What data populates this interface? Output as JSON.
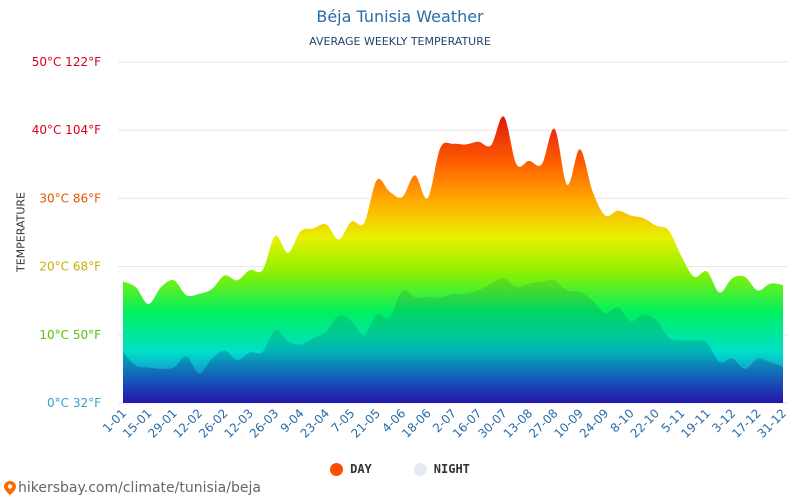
{
  "title": "Béja Tunisia Weather",
  "subtitle": "AVERAGE WEEKLY TEMPERATURE",
  "footer_url": "hikersbay.com/climate/tunisia/beja",
  "colors": {
    "title": "#2a6ba8",
    "day_legend": "#ff4d00",
    "night_legend": "#e3eaf2"
  },
  "chart_data": {
    "type": "area",
    "title": "AVERAGE WEEKLY TEMPERATURE",
    "ylabel": "TEMPERATURE",
    "ylim": [
      0,
      50
    ],
    "grid": true,
    "legend": "bottom",
    "y_ticks": [
      {
        "value": 0,
        "label": "0°C 32°F",
        "color": "#3aa0c8"
      },
      {
        "value": 10,
        "label": "10°C 50°F",
        "color": "#5cc00a"
      },
      {
        "value": 20,
        "label": "20°C 68°F",
        "color": "#c8b000"
      },
      {
        "value": 30,
        "label": "30°C 86°F",
        "color": "#e85500"
      },
      {
        "value": 40,
        "label": "40°C 104°F",
        "color": "#d8001e"
      },
      {
        "value": 50,
        "label": "50°C 122°F",
        "color": "#d8001e"
      }
    ],
    "x_ticks": [
      "1-01",
      "15-01",
      "29-01",
      "12-02",
      "26-02",
      "12-03",
      "26-03",
      "9-04",
      "23-04",
      "7-05",
      "21-05",
      "4-06",
      "18-06",
      "2-07",
      "16-07",
      "30-07",
      "13-08",
      "27-08",
      "10-09",
      "24-09",
      "8-10",
      "22-10",
      "5-11",
      "19-11",
      "3-12",
      "17-12",
      "31-12"
    ],
    "series": [
      {
        "name": "DAY",
        "values": [
          17.8,
          17.0,
          14.5,
          17.0,
          18.0,
          15.8,
          16.0,
          16.7,
          18.7,
          18.0,
          19.5,
          19.5,
          24.5,
          22.0,
          25.2,
          25.6,
          26.2,
          24.0,
          26.6,
          26.4,
          32.7,
          31.0,
          30.2,
          33.4,
          30.0,
          37.4,
          38.0,
          37.9,
          38.3,
          37.8,
          42.0,
          35.0,
          35.5,
          35.0,
          40.2,
          32.0,
          37.2,
          31.0,
          27.5,
          28.2,
          27.5,
          27.1,
          26.0,
          25.3,
          21.5,
          18.5,
          19.3,
          16.2,
          18.3,
          18.5,
          16.5,
          17.5,
          17.3
        ]
      },
      {
        "name": "NIGHT",
        "values": [
          7.5,
          5.5,
          5.2,
          5.0,
          5.2,
          6.8,
          4.3,
          6.5,
          7.7,
          6.3,
          7.4,
          7.5,
          10.7,
          9.0,
          8.6,
          9.5,
          10.5,
          12.8,
          12.0,
          10.0,
          13.0,
          12.5,
          16.5,
          15.5,
          15.5,
          15.5,
          16.0,
          16.0,
          16.5,
          17.5,
          18.3,
          17.0,
          17.5,
          17.8,
          18.0,
          16.5,
          16.3,
          15.0,
          13.2,
          14.0,
          12.0,
          13.0,
          12.2,
          9.6,
          9.2,
          9.2,
          8.8,
          6.0,
          6.5,
          5.0,
          6.5,
          6.0,
          5.3
        ]
      }
    ]
  },
  "legend": [
    {
      "label": "DAY",
      "color": "#ff4d00"
    },
    {
      "label": "NIGHT",
      "color": "#e3eaf2"
    }
  ]
}
